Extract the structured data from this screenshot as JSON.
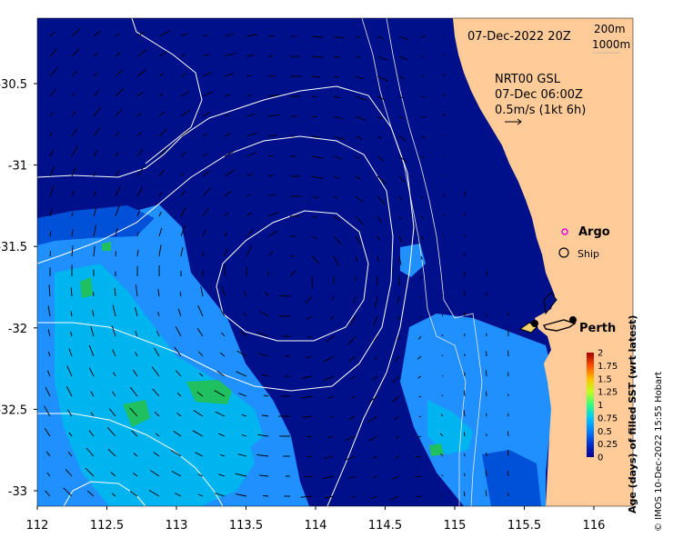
{
  "title": "07-Dec-2022 20Z",
  "depth_legend": {
    "line1": "200m",
    "line2": "1000m"
  },
  "current_info": {
    "line1": "NRT00 GSL",
    "line2": "07-Dec 06:00Z",
    "line3": "0.5m/s (1kt 6h)"
  },
  "markers": {
    "argo_label": "Argo",
    "ship_label": "Ship",
    "city_label": "Perth"
  },
  "x_ticks": [
    "112",
    "112.5",
    "113",
    "113.5",
    "114",
    "114.5",
    "115",
    "115.5",
    "116"
  ],
  "y_ticks": [
    "-30.5",
    "-31",
    "-31.5",
    "-32",
    "-32.5",
    "-33"
  ],
  "y_tick_values": [
    -30.5,
    -31,
    -31.5,
    -32,
    -32.5,
    -33
  ],
  "x_tick_values": [
    112,
    112.5,
    113,
    113.5,
    114,
    114.5,
    115,
    115.5,
    116
  ],
  "colorbar": {
    "label": "Age (days) of filled SST (wrt latest)",
    "ticks": [
      "2",
      "1.75",
      "1.5",
      "1.25",
      "1",
      "0.75",
      "0.5",
      "0.25",
      "0"
    ],
    "colors": [
      "#00008c",
      "#0030d0",
      "#0080ff",
      "#00c8ff",
      "#30ff80",
      "#c0ff20",
      "#ffc000",
      "#ff5000",
      "#a00000"
    ]
  },
  "credit": "© IMOS 10-Dec-2022 15:55 Hobart",
  "colors": {
    "ocean": "#00108a",
    "land": "#ffcc99",
    "patch_light": "#2090ff",
    "patch_mid": "#0050d8",
    "patch_cyan": "#00b4f0",
    "patch_green": "#20c060"
  }
}
